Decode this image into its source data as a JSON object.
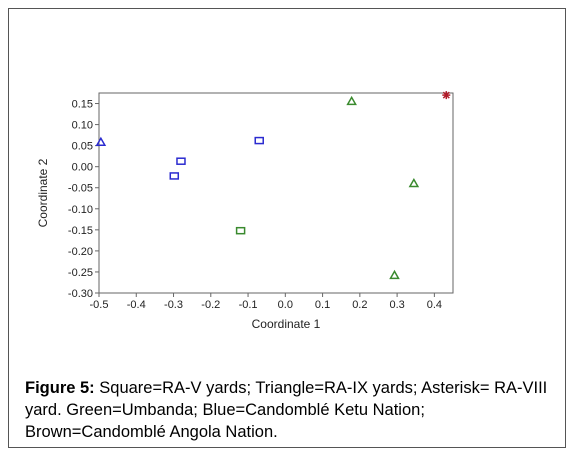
{
  "chart_data": {
    "type": "scatter",
    "title": "",
    "xlabel": "Coordinate 1",
    "ylabel": "Coordinate 2",
    "xlim": [
      -0.5,
      0.45
    ],
    "ylim": [
      -0.3,
      0.175
    ],
    "xticks": [
      "-0.5",
      "-0.4",
      "-0.3",
      "-0.2",
      "-0.1",
      "0.0",
      "0.1",
      "0.2",
      "0.3",
      "0.4"
    ],
    "xtick_values": [
      -0.5,
      -0.4,
      -0.3,
      -0.2,
      -0.1,
      0.0,
      0.1,
      0.2,
      0.3,
      0.4
    ],
    "yticks": [
      "0.15",
      "0.10",
      "0.05",
      "0.00",
      "-0.05",
      "-0.10",
      "-0.15",
      "-0.20",
      "-0.25",
      "-0.30"
    ],
    "ytick_values": [
      0.15,
      0.1,
      0.05,
      0.0,
      -0.05,
      -0.1,
      -0.15,
      -0.2,
      -0.25,
      -0.3
    ],
    "grid": false,
    "colors": {
      "green": "#3a8a2e",
      "blue": "#2b2bd0",
      "brown": "#b01c2a"
    },
    "points": [
      {
        "x": -0.495,
        "y": 0.058,
        "marker": "triangle",
        "color": "blue"
      },
      {
        "x": -0.28,
        "y": 0.013,
        "marker": "square",
        "color": "blue"
      },
      {
        "x": -0.298,
        "y": -0.022,
        "marker": "square",
        "color": "blue"
      },
      {
        "x": -0.07,
        "y": 0.062,
        "marker": "square",
        "color": "blue"
      },
      {
        "x": -0.12,
        "y": -0.152,
        "marker": "square",
        "color": "green"
      },
      {
        "x": 0.178,
        "y": 0.155,
        "marker": "triangle",
        "color": "green"
      },
      {
        "x": 0.345,
        "y": -0.04,
        "marker": "triangle",
        "color": "green"
      },
      {
        "x": 0.293,
        "y": -0.258,
        "marker": "triangle",
        "color": "green"
      },
      {
        "x": 0.432,
        "y": 0.17,
        "marker": "asterisk",
        "color": "brown"
      }
    ]
  },
  "caption": {
    "label": "Figure 5:",
    "text": " Square=RA-V yards; Triangle=RA-IX yards; Asterisk= RA-VIII yard. Green=Umbanda; Blue=Candomblé Ketu Nation; Brown=Candomblé Angola Nation."
  }
}
